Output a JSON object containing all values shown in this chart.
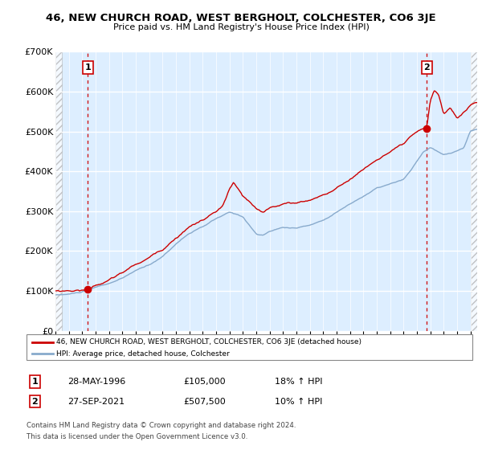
{
  "title": "46, NEW CHURCH ROAD, WEST BERGHOLT, COLCHESTER, CO6 3JE",
  "subtitle": "Price paid vs. HM Land Registry's House Price Index (HPI)",
  "legend_line1": "46, NEW CHURCH ROAD, WEST BERGHOLT, COLCHESTER, CO6 3JE (detached house)",
  "legend_line2": "HPI: Average price, detached house, Colchester",
  "footer1": "Contains HM Land Registry data © Crown copyright and database right 2024.",
  "footer2": "This data is licensed under the Open Government Licence v3.0.",
  "transaction1_label": "1",
  "transaction1_date": "28-MAY-1996",
  "transaction1_price": "£105,000",
  "transaction1_hpi": "18% ↑ HPI",
  "transaction2_label": "2",
  "transaction2_date": "27-SEP-2021",
  "transaction2_price": "£507,500",
  "transaction2_hpi": "10% ↑ HPI",
  "ylim": [
    0,
    700000
  ],
  "yticks": [
    0,
    100000,
    200000,
    300000,
    400000,
    500000,
    600000,
    700000
  ],
  "ytick_labels": [
    "£0",
    "£100K",
    "£200K",
    "£300K",
    "£400K",
    "£500K",
    "£600K",
    "£700K"
  ],
  "xlim_start": 1994.0,
  "xlim_end": 2025.5,
  "red_color": "#cc0000",
  "blue_color": "#88aacc",
  "plot_bg": "#ddeeff",
  "grid_color": "#ffffff",
  "marker1_x": 1996.41,
  "marker1_y": 105000,
  "marker2_x": 2021.74,
  "marker2_y": 507500,
  "xtick_years": [
    1994,
    1995,
    1996,
    1997,
    1998,
    1999,
    2000,
    2001,
    2002,
    2003,
    2004,
    2005,
    2006,
    2007,
    2008,
    2009,
    2010,
    2011,
    2012,
    2013,
    2014,
    2015,
    2016,
    2017,
    2018,
    2019,
    2020,
    2021,
    2022,
    2023,
    2024,
    2025
  ]
}
